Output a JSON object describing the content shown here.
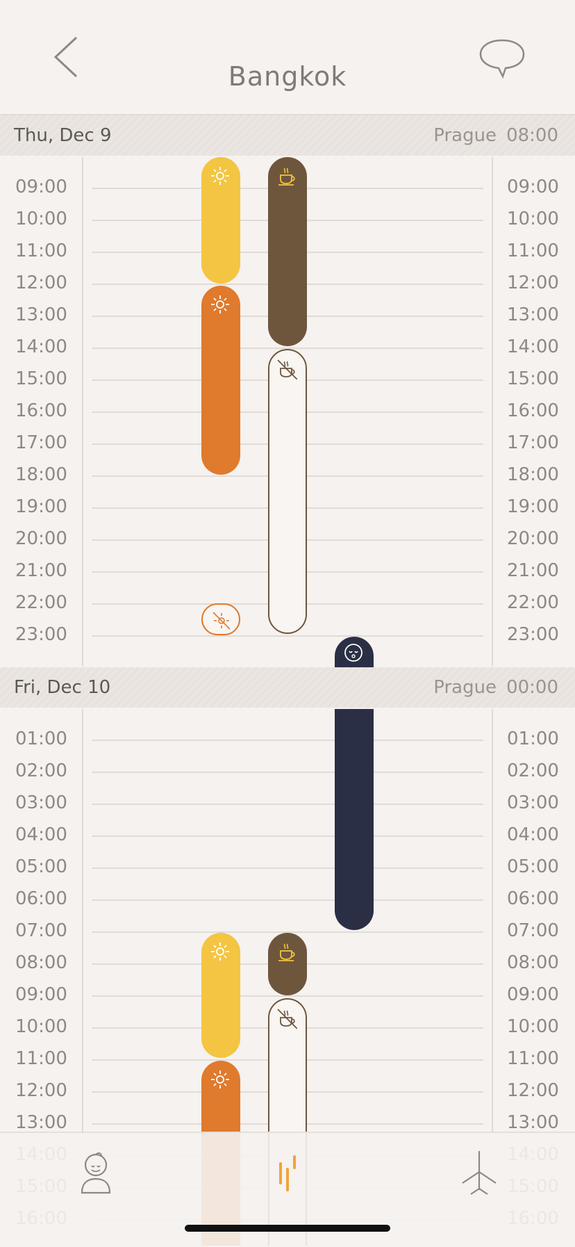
{
  "header": {
    "title": "Bangkok",
    "back_icon": "chevron-left-icon",
    "chat_icon": "chat-bubble-icon"
  },
  "days": [
    {
      "label": "Thu, Dec 9",
      "tz_name": "Prague",
      "tz_time": "08:00"
    },
    {
      "label": "Fri, Dec 10",
      "tz_name": "Prague",
      "tz_time": "00:00"
    }
  ],
  "day1_times": {
    "left": [
      "09:00",
      "10:00",
      "11:00",
      "12:00",
      "13:00",
      "14:00",
      "15:00",
      "16:00",
      "17:00",
      "18:00",
      "19:00",
      "20:00",
      "21:00",
      "22:00",
      "23:00"
    ],
    "right": [
      "09:00",
      "10:00",
      "11:00",
      "12:00",
      "13:00",
      "14:00",
      "15:00",
      "16:00",
      "17:00",
      "18:00",
      "19:00",
      "20:00",
      "21:00",
      "22:00",
      "23:00"
    ]
  },
  "day2_times": {
    "left": [
      "01:00",
      "02:00",
      "03:00",
      "04:00",
      "05:00",
      "06:00",
      "07:00",
      "08:00",
      "09:00",
      "10:00",
      "11:00",
      "12:00",
      "13:00",
      "14:00",
      "15:00",
      "16:00"
    ],
    "right": [
      "01:00",
      "02:00",
      "03:00",
      "04:00",
      "05:00",
      "06:00",
      "07:00",
      "08:00",
      "09:00",
      "10:00",
      "11:00",
      "12:00",
      "13:00",
      "14:00",
      "15:00",
      "16:00"
    ]
  },
  "colors": {
    "light": "#f4c542",
    "light_avoid": "#e07a2d",
    "caffeine": "#6e563d",
    "sleep": "#2a2f45",
    "background": "#f5f2ef"
  },
  "tabbar": {
    "items": [
      {
        "name": "profile-icon"
      },
      {
        "name": "plan-icon",
        "active": true
      },
      {
        "name": "flight-icon"
      }
    ]
  }
}
